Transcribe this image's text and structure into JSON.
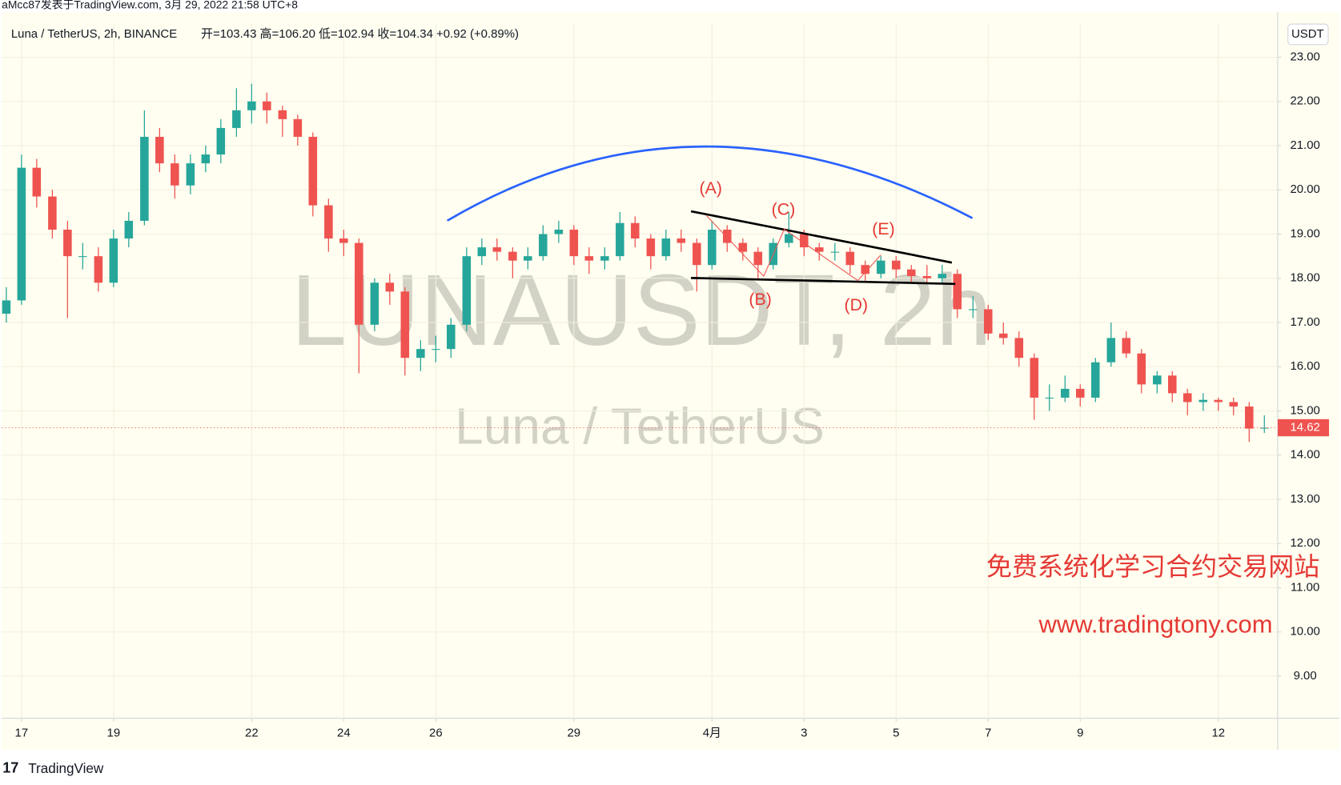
{
  "header": "aMcc87发表于TradingView.com, 3月 29, 2022 21:58 UTC+8",
  "chart_data": {
    "type": "candlestick",
    "title": "Luna / TetherUS, 2h, BINANCE",
    "ohlc_text": "开=103.43  高=106.20  低=102.94  收=104.34  +0.92 (+0.89%)",
    "watermark": "LUNAUSDT, 2h",
    "watermark_sub": "Luna / TetherUS",
    "currency": "USDT",
    "last_price": 14.62,
    "up_color": "#26a69a",
    "down_color": "#ef5350",
    "annotations": [
      "(A)",
      "(B)",
      "(C)",
      "(D)",
      "(E)"
    ],
    "promo": "免费系统化学习合约交易网站",
    "promo_url": "www.tradingtony.com",
    "xlim": [
      -0.43,
      27.29
    ],
    "ylim": [
      8.05,
      23.75
    ],
    "xticks": [
      {
        "value": 0,
        "label": "17"
      },
      {
        "value": 2,
        "label": "19"
      },
      {
        "value": 5,
        "label": "22"
      },
      {
        "value": 7,
        "label": "24"
      },
      {
        "value": 9,
        "label": "26"
      },
      {
        "value": 12,
        "label": "29"
      },
      {
        "value": 15,
        "label": "4月"
      },
      {
        "value": 17,
        "label": "3"
      },
      {
        "value": 19,
        "label": "5"
      },
      {
        "value": 21,
        "label": "7"
      },
      {
        "value": 23,
        "label": "9"
      },
      {
        "value": 26,
        "label": "12"
      }
    ],
    "yticks": [
      {
        "value": 9,
        "label": "9.00"
      },
      {
        "value": 10,
        "label": "10.00"
      },
      {
        "value": 11,
        "label": "11.00"
      },
      {
        "value": 12,
        "label": "12.00"
      },
      {
        "value": 13,
        "label": "13.00"
      },
      {
        "value": 14,
        "label": "14.00"
      },
      {
        "value": 15,
        "label": "15.00"
      },
      {
        "value": 16,
        "label": "16.00"
      },
      {
        "value": 17,
        "label": "17.00"
      },
      {
        "value": 18,
        "label": "18.00"
      },
      {
        "value": 19,
        "label": "19.00"
      },
      {
        "value": 20,
        "label": "20.00"
      },
      {
        "value": 21,
        "label": "21.00"
      },
      {
        "value": 22,
        "label": "22.00"
      },
      {
        "value": 23,
        "label": "23.00"
      }
    ],
    "x": [
      -0.33,
      0,
      0.33,
      0.67,
      1,
      1.33,
      1.67,
      2,
      2.33,
      2.67,
      3,
      3.33,
      3.67,
      4,
      4.33,
      4.67,
      5,
      5.33,
      5.67,
      6,
      6.33,
      6.67,
      7,
      7.33,
      7.67,
      8,
      8.33,
      8.67,
      9,
      9.33,
      9.67,
      10,
      10.33,
      10.67,
      11,
      11.33,
      11.67,
      12,
      12.33,
      12.67,
      13,
      13.33,
      13.67,
      14,
      14.33,
      14.67,
      15,
      15.33,
      15.67,
      16,
      16.33,
      16.67,
      17,
      17.33,
      17.67,
      18,
      18.33,
      18.67,
      19,
      19.33,
      19.67,
      20,
      20.33,
      20.67,
      21,
      21.33,
      21.67,
      22,
      22.33,
      22.67,
      23,
      23.33,
      23.67,
      24,
      24.33,
      24.67,
      25,
      25.33,
      25.67,
      26,
      26.33,
      26.67,
      27
    ],
    "open": [
      17.2,
      17.5,
      20.5,
      19.85,
      19.1,
      18.5,
      18.5,
      17.9,
      18.9,
      19.3,
      21.2,
      20.6,
      20.1,
      20.6,
      20.8,
      21.4,
      21.8,
      22.0,
      21.8,
      21.6,
      21.2,
      19.65,
      18.9,
      18.8,
      16.95,
      17.9,
      17.7,
      16.2,
      16.4,
      16.4,
      16.95,
      18.5,
      18.7,
      18.6,
      18.4,
      18.5,
      19.0,
      19.1,
      18.5,
      18.4,
      18.5,
      19.25,
      18.9,
      18.5,
      18.9,
      18.8,
      18.3,
      19.1,
      18.8,
      18.6,
      18.3,
      18.8,
      19.0,
      18.7,
      18.6,
      18.6,
      18.3,
      18.1,
      18.4,
      18.2,
      18.05,
      18.0,
      18.1,
      17.3,
      17.3,
      16.75,
      16.65,
      16.2,
      15.3,
      15.3,
      15.5,
      15.3,
      16.1,
      16.65,
      16.3,
      15.6,
      15.8,
      15.4,
      15.2,
      15.25,
      15.2,
      15.1,
      14.6
    ],
    "high": [
      17.8,
      20.8,
      20.7,
      20.0,
      19.3,
      18.8,
      18.7,
      19.1,
      19.5,
      21.8,
      21.4,
      20.8,
      20.8,
      21.0,
      21.6,
      22.3,
      22.4,
      22.2,
      21.9,
      21.7,
      21.3,
      19.8,
      19.1,
      18.9,
      18.0,
      18.1,
      17.8,
      16.6,
      16.7,
      17.1,
      18.7,
      18.9,
      18.9,
      18.7,
      18.7,
      19.2,
      19.3,
      19.2,
      18.7,
      18.7,
      19.5,
      19.4,
      19.0,
      19.1,
      19.1,
      18.9,
      19.3,
      19.2,
      18.9,
      18.7,
      18.9,
      19.5,
      19.1,
      18.8,
      18.8,
      18.7,
      18.4,
      18.5,
      18.5,
      18.3,
      18.3,
      18.3,
      18.2,
      17.6,
      17.4,
      17.0,
      16.8,
      16.3,
      15.6,
      15.8,
      15.6,
      16.2,
      17.0,
      16.8,
      16.4,
      15.9,
      15.9,
      15.5,
      15.4,
      15.3,
      15.3,
      15.2,
      14.9
    ],
    "low": [
      17.0,
      17.4,
      19.6,
      18.9,
      17.1,
      18.2,
      17.7,
      17.8,
      18.7,
      19.2,
      20.4,
      19.8,
      19.9,
      20.4,
      20.6,
      21.2,
      21.5,
      21.5,
      21.2,
      21.0,
      19.4,
      18.6,
      18.5,
      15.85,
      16.8,
      17.4,
      15.8,
      15.9,
      16.1,
      16.2,
      16.8,
      18.3,
      18.4,
      18.0,
      18.2,
      18.4,
      18.8,
      18.3,
      18.1,
      18.2,
      18.4,
      18.7,
      18.2,
      18.4,
      18.6,
      17.7,
      18.2,
      18.6,
      18.4,
      18.0,
      18.2,
      18.7,
      18.5,
      18.4,
      18.4,
      18.1,
      17.9,
      18.0,
      18.0,
      17.9,
      17.9,
      17.9,
      17.1,
      17.1,
      16.6,
      16.5,
      16.0,
      14.8,
      15.0,
      15.2,
      15.1,
      15.2,
      16.0,
      16.2,
      15.4,
      15.4,
      15.2,
      14.9,
      15.0,
      15.0,
      14.9,
      14.3,
      14.5
    ],
    "close": [
      17.5,
      20.5,
      19.85,
      19.1,
      18.5,
      18.5,
      17.9,
      18.9,
      19.3,
      21.2,
      20.6,
      20.1,
      20.6,
      20.8,
      21.4,
      21.8,
      22.0,
      21.8,
      21.6,
      21.2,
      19.65,
      18.9,
      18.8,
      16.95,
      17.9,
      17.7,
      16.2,
      16.4,
      16.4,
      16.95,
      18.5,
      18.7,
      18.6,
      18.4,
      18.5,
      19.0,
      19.1,
      18.5,
      18.4,
      18.5,
      19.25,
      18.9,
      18.5,
      18.9,
      18.8,
      18.3,
      19.1,
      18.8,
      18.6,
      18.3,
      18.8,
      19.0,
      18.7,
      18.6,
      18.6,
      18.3,
      18.1,
      18.4,
      18.2,
      18.05,
      18.0,
      18.1,
      17.3,
      17.3,
      16.75,
      16.65,
      16.2,
      15.3,
      15.3,
      15.5,
      15.3,
      16.1,
      16.65,
      16.3,
      15.6,
      15.8,
      15.4,
      15.2,
      15.25,
      15.2,
      15.1,
      14.6,
      14.62
    ]
  },
  "footer": "TradingView"
}
